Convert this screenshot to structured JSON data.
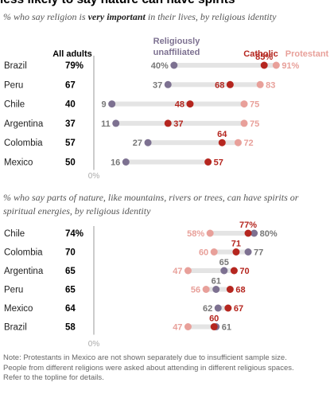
{
  "title": "less likely to say nature can have spirits",
  "note": [
    "Note: Protestants in Mexico are not shown separately due to insufficient sample size.",
    "People from different religions were asked about attending in different religious spaces.",
    "Refer to the topline for details."
  ],
  "colors": {
    "unaffiliated": "#7d7191",
    "catholic": "#b5261f",
    "protestant": "#e8a09a",
    "track": "#e4e4e4",
    "axis": "#999999",
    "label_gray": "#777777"
  },
  "chart_data": [
    {
      "type": "dot",
      "subtitle_parts": [
        "% who say religion is ",
        "very important",
        " in their lives, by religious identity"
      ],
      "column_header_all": "All adults",
      "legend": {
        "unaffiliated_line1": "Religiously",
        "unaffiliated_line2": "unaffiliated",
        "catholic": "Catholic",
        "protestant": "Protestant"
      },
      "xlim": [
        0,
        100
      ],
      "zero_label": "0%",
      "rows": [
        {
          "country": "Brazil",
          "all": "79%",
          "unaffiliated": 40,
          "catholic": 85,
          "protestant": 91,
          "labels": {
            "unaffiliated": "40%",
            "catholic": "85%",
            "protestant": "91%"
          }
        },
        {
          "country": "Peru",
          "all": "67",
          "unaffiliated": 37,
          "catholic": 68,
          "protestant": 83,
          "labels": {
            "unaffiliated": "37",
            "catholic": "68",
            "protestant": "83"
          }
        },
        {
          "country": "Chile",
          "all": "40",
          "unaffiliated": 9,
          "catholic": 48,
          "protestant": 75,
          "labels": {
            "unaffiliated": "9",
            "catholic": "48",
            "protestant": "75"
          }
        },
        {
          "country": "Argentina",
          "all": "37",
          "unaffiliated": 11,
          "catholic": 37,
          "protestant": 75,
          "labels": {
            "unaffiliated": "11",
            "catholic": "37",
            "protestant": "75"
          }
        },
        {
          "country": "Colombia",
          "all": "57",
          "unaffiliated": 27,
          "catholic": 64,
          "protestant": 72,
          "labels": {
            "unaffiliated": "27",
            "catholic": "64",
            "protestant": "72"
          }
        },
        {
          "country": "Mexico",
          "all": "50",
          "unaffiliated": 16,
          "catholic": 57,
          "protestant": null,
          "labels": {
            "unaffiliated": "16",
            "catholic": "57"
          }
        }
      ]
    },
    {
      "type": "dot",
      "subtitle": "% who say parts of nature, like mountains, rivers or trees, can have spirits or spiritual energies, by religious identity",
      "xlim": [
        0,
        100
      ],
      "zero_label": "0%",
      "rows": [
        {
          "country": "Chile",
          "all": "74%",
          "unaffiliated": 80,
          "catholic": 77,
          "protestant": 58,
          "labels": {
            "unaffiliated": "80%",
            "catholic": "77%",
            "protestant": "58%"
          }
        },
        {
          "country": "Colombia",
          "all": "70",
          "unaffiliated": 77,
          "catholic": 71,
          "protestant": 60,
          "labels": {
            "unaffiliated": "77",
            "catholic": "71",
            "protestant": "60"
          }
        },
        {
          "country": "Argentina",
          "all": "65",
          "unaffiliated": 65,
          "catholic": 70,
          "protestant": 47,
          "labels": {
            "unaffiliated": "65",
            "catholic": "70",
            "protestant": "47"
          }
        },
        {
          "country": "Peru",
          "all": "65",
          "unaffiliated": 61,
          "catholic": 68,
          "protestant": 56,
          "labels": {
            "unaffiliated": "61",
            "catholic": "68",
            "protestant": "56"
          }
        },
        {
          "country": "Mexico",
          "all": "64",
          "unaffiliated": 62,
          "catholic": 67,
          "protestant": null,
          "labels": {
            "unaffiliated": "62",
            "catholic": "67"
          }
        },
        {
          "country": "Brazil",
          "all": "58",
          "unaffiliated": 61,
          "catholic": 60,
          "protestant": 47,
          "labels": {
            "unaffiliated": "61",
            "catholic": "60",
            "protestant": "47"
          }
        }
      ]
    }
  ]
}
